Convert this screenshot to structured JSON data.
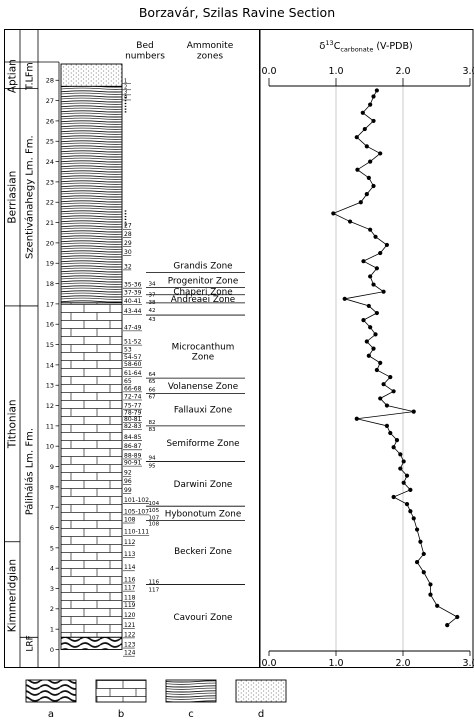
{
  "title": "Borzavár, Szilas Ravine Section",
  "stages": [
    {
      "label": "Aptian",
      "top": 28.8,
      "bottom": 27.6
    },
    {
      "label": "Berriasian",
      "top": 27.6,
      "bottom": 16.9
    },
    {
      "label": "Tithonian",
      "top": 16.9,
      "bottom": 5.3
    },
    {
      "label": "Kimmeridgian",
      "top": 5.3,
      "bottom": 0
    }
  ],
  "formations": [
    {
      "label": "T.LFm",
      "top": 28.8,
      "bottom": 27.6
    },
    {
      "label": "Szentivánahegy Lm. Fm.",
      "top": 27.6,
      "bottom": 16.9
    },
    {
      "label": "Pálihálás Lm. Fm.",
      "top": 16.9,
      "bottom": 0.6
    },
    {
      "label": "LRF",
      "top": 0.6,
      "bottom": 0
    }
  ],
  "lithology_units": [
    {
      "key": "d",
      "top": 28.8,
      "bottom": 27.7
    },
    {
      "key": "c",
      "top": 27.7,
      "bottom": 17.05
    },
    {
      "key": "b",
      "top": 17.05,
      "bottom": 0.6
    },
    {
      "key": "a",
      "top": 0.6,
      "bottom": 0
    }
  ],
  "headers": {
    "bed_numbers": "Bed\nnumbers",
    "ammonite_zones": "Ammonite\nzones"
  },
  "bed_numbers": [
    {
      "h": 20.75,
      "label": "27"
    },
    {
      "h": 20.35,
      "label": "28"
    },
    {
      "h": 19.9,
      "label": "29"
    },
    {
      "h": 19.45,
      "label": "30"
    },
    {
      "h": 18.75,
      "label": "32"
    },
    {
      "h": 17.85,
      "label": "35-36"
    },
    {
      "h": 17.45,
      "label": "37-39"
    },
    {
      "h": 17.05,
      "label": "40-41"
    },
    {
      "h": 16.55,
      "label": "43-44"
    },
    {
      "h": 15.75,
      "label": "47-49"
    },
    {
      "h": 15.05,
      "label": "51-52"
    },
    {
      "h": 14.65,
      "label": "53"
    },
    {
      "h": 14.3,
      "label": "54-57"
    },
    {
      "h": 13.95,
      "label": "58-60"
    },
    {
      "h": 13.5,
      "label": "61-64"
    },
    {
      "h": 13.1,
      "label": "65"
    },
    {
      "h": 12.75,
      "label": "66-68"
    },
    {
      "h": 12.35,
      "label": "72-74"
    },
    {
      "h": 11.9,
      "label": "75-77"
    },
    {
      "h": 11.55,
      "label": "78-79"
    },
    {
      "h": 11.25,
      "label": "80-81"
    },
    {
      "h": 10.9,
      "label": "82-83"
    },
    {
      "h": 10.35,
      "label": "84-85"
    },
    {
      "h": 9.9,
      "label": "86-87"
    },
    {
      "h": 9.45,
      "label": "88-89"
    },
    {
      "h": 9.1,
      "label": "90-91"
    },
    {
      "h": 8.6,
      "label": "92"
    },
    {
      "h": 8.2,
      "label": "96"
    },
    {
      "h": 7.75,
      "label": "99"
    },
    {
      "h": 7.25,
      "label": "101-102"
    },
    {
      "h": 6.7,
      "label": "105-107"
    },
    {
      "h": 6.3,
      "label": "108"
    },
    {
      "h": 5.7,
      "label": "110-111"
    },
    {
      "h": 5.2,
      "label": "112"
    },
    {
      "h": 4.6,
      "label": "113"
    },
    {
      "h": 3.95,
      "label": "114"
    },
    {
      "h": 3.35,
      "label": "116"
    },
    {
      "h": 2.95,
      "label": "117"
    },
    {
      "h": 2.45,
      "label": "118"
    },
    {
      "h": 2.1,
      "label": "119"
    },
    {
      "h": 1.6,
      "label": "120"
    },
    {
      "h": 1.1,
      "label": "121"
    },
    {
      "h": 0.65,
      "label": "122"
    },
    {
      "h": 0.15,
      "label": "123"
    },
    {
      "h": -0.25,
      "label": "124"
    }
  ],
  "bed_dots": [
    {
      "from": 27.3,
      "to": 26.4
    },
    {
      "from": 21.6,
      "to": 20.8
    }
  ],
  "bed_top_labels": [
    {
      "h": 27.9,
      "label": "1"
    },
    {
      "h": 27.6,
      "label": "2"
    },
    {
      "h": 27.35,
      "label": "3"
    },
    {
      "h": 27.1,
      "label": "4"
    }
  ],
  "zone_boundaries": [
    18.55,
    17.8,
    17.45,
    17.05,
    16.45,
    13.35,
    12.6,
    11.0,
    9.25,
    7.05,
    6.35,
    3.2
  ],
  "zone_tick_labels": [
    {
      "h": 18.0,
      "label": "34"
    },
    {
      "h": 17.45,
      "label": "37"
    },
    {
      "h": 17.1,
      "label": "38"
    },
    {
      "h": 16.7,
      "label": "42"
    },
    {
      "h": 16.25,
      "label": "43"
    },
    {
      "h": 13.55,
      "label": "64"
    },
    {
      "h": 13.2,
      "label": "65"
    },
    {
      "h": 12.8,
      "label": "66"
    },
    {
      "h": 12.45,
      "label": "67"
    },
    {
      "h": 11.2,
      "label": "82"
    },
    {
      "h": 10.85,
      "label": "83"
    },
    {
      "h": 9.45,
      "label": "94"
    },
    {
      "h": 9.05,
      "label": "95"
    },
    {
      "h": 7.2,
      "label": "104"
    },
    {
      "h": 6.85,
      "label": "105"
    },
    {
      "h": 6.5,
      "label": "107"
    },
    {
      "h": 6.2,
      "label": "108"
    },
    {
      "h": 3.35,
      "label": "116"
    },
    {
      "h": 2.95,
      "label": "117"
    }
  ],
  "zones": [
    {
      "label": "Grandis Zone",
      "h": 18.9
    },
    {
      "label": "Progenitor Zone",
      "h": 18.15
    },
    {
      "label": "Chaperi Zone",
      "h": 17.6
    },
    {
      "label": "Andreaei Zone",
      "h": 17.25
    },
    {
      "label": "Microcanthum\nZone",
      "h": 14.9
    },
    {
      "label": "Volanense Zone",
      "h": 12.95
    },
    {
      "label": "Fallauxi Zone",
      "h": 11.8
    },
    {
      "label": "Semiforme Zone",
      "h": 10.15
    },
    {
      "label": "Darwini Zone",
      "h": 8.15
    },
    {
      "label": "Hybonotum Zone",
      "h": 6.7
    },
    {
      "label": "Beckeri Zone",
      "h": 4.85
    },
    {
      "label": "Cavouri Zone",
      "h": 1.6
    }
  ],
  "legend": [
    {
      "key": "a",
      "label": "a"
    },
    {
      "key": "b",
      "label": "b"
    },
    {
      "key": "c",
      "label": "c"
    },
    {
      "key": "d",
      "label": "d"
    }
  ],
  "chart_data": {
    "type": "line",
    "xlabel_delta": "δ",
    "xlabel_sup": "13",
    "xlabel_rest": "C",
    "xlabel_sub": "carbonate",
    "xlabel_tail": "(V-PDB)",
    "xlim": [
      0.0,
      3.0
    ],
    "xticks": [
      "0.0",
      "1.0",
      "2.0",
      "3.0"
    ],
    "ylim": [
      0,
      29
    ],
    "yticks": [
      0,
      1,
      2,
      3,
      4,
      5,
      6,
      7,
      8,
      9,
      10,
      11,
      12,
      13,
      14,
      15,
      16,
      17,
      18,
      19,
      20,
      21,
      22,
      23,
      24,
      25,
      26,
      27,
      28
    ],
    "points": [
      {
        "x": 1.61,
        "y": 27.5
      },
      {
        "x": 1.56,
        "y": 27.2
      },
      {
        "x": 1.51,
        "y": 26.8
      },
      {
        "x": 1.4,
        "y": 26.4
      },
      {
        "x": 1.56,
        "y": 26.0
      },
      {
        "x": 1.43,
        "y": 25.6
      },
      {
        "x": 1.31,
        "y": 25.2
      },
      {
        "x": 1.46,
        "y": 24.75
      },
      {
        "x": 1.66,
        "y": 24.4
      },
      {
        "x": 1.51,
        "y": 24.0
      },
      {
        "x": 1.32,
        "y": 23.6
      },
      {
        "x": 1.49,
        "y": 23.2
      },
      {
        "x": 1.56,
        "y": 22.8
      },
      {
        "x": 1.46,
        "y": 22.4
      },
      {
        "x": 1.37,
        "y": 22.0
      },
      {
        "x": 0.96,
        "y": 21.45
      },
      {
        "x": 1.21,
        "y": 21.05
      },
      {
        "x": 1.51,
        "y": 20.65
      },
      {
        "x": 1.59,
        "y": 20.3
      },
      {
        "x": 1.76,
        "y": 19.9
      },
      {
        "x": 1.66,
        "y": 19.5
      },
      {
        "x": 1.41,
        "y": 19.1
      },
      {
        "x": 1.61,
        "y": 18.75
      },
      {
        "x": 1.51,
        "y": 18.35
      },
      {
        "x": 1.56,
        "y": 17.95
      },
      {
        "x": 1.71,
        "y": 17.6
      },
      {
        "x": 1.13,
        "y": 17.25
      },
      {
        "x": 1.49,
        "y": 16.9
      },
      {
        "x": 1.61,
        "y": 16.55
      },
      {
        "x": 1.41,
        "y": 16.2
      },
      {
        "x": 1.51,
        "y": 15.85
      },
      {
        "x": 1.59,
        "y": 15.5
      },
      {
        "x": 1.46,
        "y": 15.15
      },
      {
        "x": 1.56,
        "y": 14.8
      },
      {
        "x": 1.49,
        "y": 14.45
      },
      {
        "x": 1.66,
        "y": 14.1
      },
      {
        "x": 1.61,
        "y": 13.75
      },
      {
        "x": 1.81,
        "y": 13.4
      },
      {
        "x": 1.71,
        "y": 13.05
      },
      {
        "x": 1.86,
        "y": 12.7
      },
      {
        "x": 1.66,
        "y": 12.35
      },
      {
        "x": 1.76,
        "y": 12.0
      },
      {
        "x": 2.16,
        "y": 11.7
      },
      {
        "x": 1.31,
        "y": 11.35
      },
      {
        "x": 1.76,
        "y": 11.0
      },
      {
        "x": 1.81,
        "y": 10.65
      },
      {
        "x": 1.91,
        "y": 10.3
      },
      {
        "x": 1.86,
        "y": 9.95
      },
      {
        "x": 1.96,
        "y": 9.6
      },
      {
        "x": 2.01,
        "y": 9.25
      },
      {
        "x": 1.96,
        "y": 8.9
      },
      {
        "x": 2.06,
        "y": 8.55
      },
      {
        "x": 2.01,
        "y": 8.2
      },
      {
        "x": 2.11,
        "y": 7.85
      },
      {
        "x": 1.86,
        "y": 7.5
      },
      {
        "x": 2.06,
        "y": 7.15
      },
      {
        "x": 2.11,
        "y": 6.8
      },
      {
        "x": 2.16,
        "y": 6.45
      },
      {
        "x": 2.21,
        "y": 5.9
      },
      {
        "x": 2.26,
        "y": 5.3
      },
      {
        "x": 2.31,
        "y": 4.7
      },
      {
        "x": 2.21,
        "y": 4.3
      },
      {
        "x": 2.31,
        "y": 3.8
      },
      {
        "x": 2.41,
        "y": 3.2
      },
      {
        "x": 2.41,
        "y": 2.7
      },
      {
        "x": 2.51,
        "y": 2.15
      },
      {
        "x": 2.81,
        "y": 1.6
      },
      {
        "x": 2.66,
        "y": 1.2
      }
    ]
  }
}
